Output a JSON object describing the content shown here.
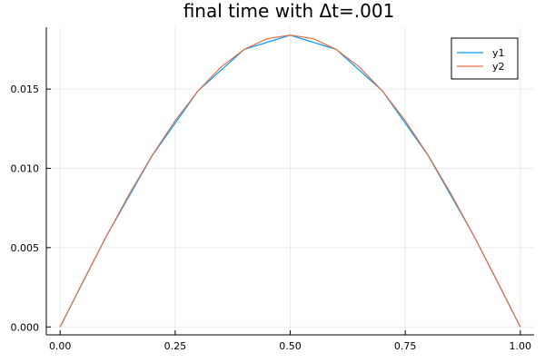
{
  "chart_data": {
    "type": "line",
    "title": "final time with Δt=.001",
    "xlabel": "",
    "ylabel": "",
    "xlim": [
      -0.03,
      1.03
    ],
    "ylim": [
      -0.0005,
      0.0189
    ],
    "xticks": [
      0.0,
      0.25,
      0.5,
      0.75,
      1.0
    ],
    "xtick_labels": [
      "0.00",
      "0.25",
      "0.50",
      "0.75",
      "1.00"
    ],
    "yticks": [
      0.0,
      0.005,
      0.01,
      0.015
    ],
    "ytick_labels": [
      "0.000",
      "0.005",
      "0.010",
      "0.015"
    ],
    "grid": true,
    "legend_position": "top-right",
    "series": [
      {
        "name": "y1",
        "color": "#009AFA",
        "x": [
          0.0,
          0.1,
          0.2,
          0.3,
          0.4,
          0.5,
          0.6,
          0.7,
          0.8,
          0.9,
          1.0
        ],
        "y": [
          0.0,
          0.0057,
          0.0108,
          0.0149,
          0.0175,
          0.0184,
          0.0175,
          0.0149,
          0.0108,
          0.0057,
          0.0
        ]
      },
      {
        "name": "y2",
        "color": "#E26F46",
        "x": [
          0.0,
          0.05,
          0.1,
          0.15,
          0.2,
          0.25,
          0.3,
          0.35,
          0.4,
          0.45,
          0.5,
          0.55,
          0.6,
          0.65,
          0.7,
          0.75,
          0.8,
          0.85,
          0.9,
          0.95,
          1.0
        ],
        "y": [
          0.0,
          0.00288,
          0.00569,
          0.00836,
          0.01082,
          0.01301,
          0.01489,
          0.0164,
          0.0175,
          0.01818,
          0.0184,
          0.01818,
          0.0175,
          0.0164,
          0.01489,
          0.01301,
          0.01082,
          0.00836,
          0.00569,
          0.00288,
          0.0
        ]
      }
    ]
  }
}
